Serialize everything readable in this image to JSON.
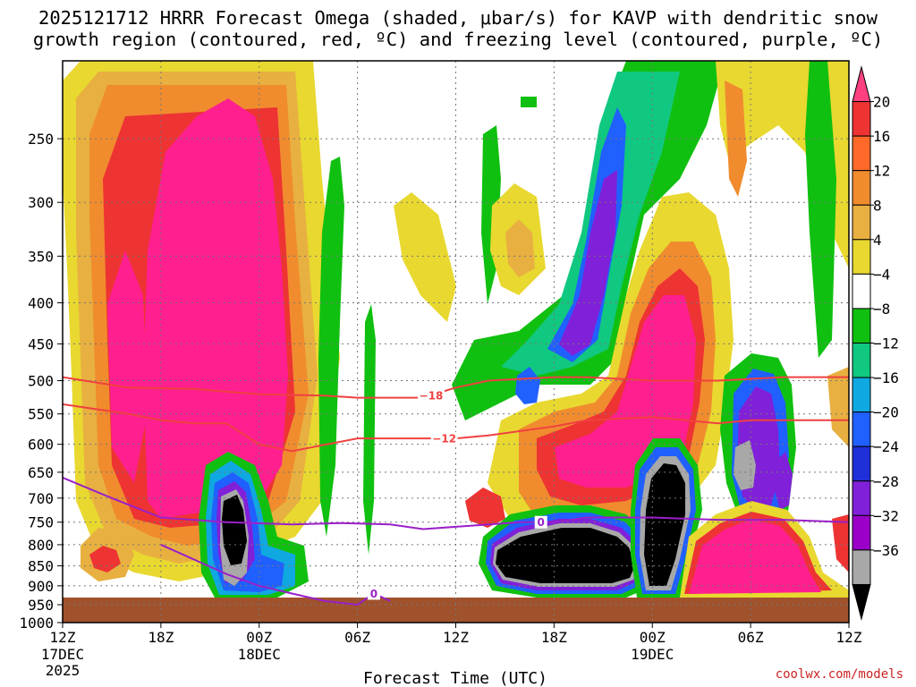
{
  "title_line1": "2025121712 HRRR Forecast Omega (shaded, μbar/s) for KAVP with dendritic snow",
  "title_line2": "growth region (contoured, red, ºC) and freezing level (contoured, purple, ºC)",
  "credit": "coolwx.com/models",
  "colorbar": {
    "labels": [
      "20",
      "16",
      "12",
      "8",
      "4",
      "−4",
      "−8",
      "−12",
      "−16",
      "−20",
      "−24",
      "−28",
      "−32",
      "−36"
    ],
    "colors": [
      "#ff4080",
      "#ee3333",
      "#ff6a2a",
      "#f08c2e",
      "#e8b040",
      "#e8d830",
      "#ffffff",
      "#10c010",
      "#10c880",
      "#10a8e0",
      "#2060ff",
      "#2030d8",
      "#8020d8",
      "#9a00c8",
      "#a8a8a8",
      "#000000"
    ]
  },
  "chart_data": {
    "type": "heatmap",
    "title": "2025121712 HRRR Forecast Omega (shaded, μbar/s) for KAVP with dendritic snow growth region (contoured, red, ºC) and freezing level (contoured, purple, ºC)",
    "xlabel": "Forecast Time (UTC)",
    "ylabel": "",
    "x_ticks": [
      "12Z",
      "18Z",
      "00Z",
      "06Z",
      "12Z",
      "18Z",
      "00Z",
      "06Z",
      "12Z"
    ],
    "x_tick_sub": [
      "17DEC",
      "",
      "18DEC",
      "",
      "",
      "",
      "19DEC",
      "",
      ""
    ],
    "x_tick_sub2": [
      "2025",
      "",
      "",
      "",
      "",
      "",
      "",
      "",
      ""
    ],
    "y_ticks": [
      250,
      300,
      350,
      400,
      450,
      500,
      550,
      600,
      650,
      700,
      750,
      800,
      850,
      900,
      950,
      1000
    ],
    "yscale": "log",
    "ylim": [
      1000,
      200
    ],
    "xlim_hours": [
      0,
      48
    ],
    "colorbar_levels": [
      20,
      16,
      12,
      8,
      4,
      -4,
      -8,
      -12,
      -16,
      -20,
      -24,
      -28,
      -32,
      -36
    ],
    "grid": true,
    "contours": [
      {
        "name": "-18",
        "color": "#f04040",
        "label_x_hours": 22.5,
        "x_hours": [
          0,
          4,
          8,
          12,
          16,
          18,
          22,
          24,
          26,
          30,
          32,
          36,
          40,
          44,
          48
        ],
        "pressure": [
          495,
          510,
          512,
          520,
          522,
          525,
          525,
          510,
          500,
          495,
          495,
          500,
          500,
          495,
          495
        ]
      },
      {
        "name": "-12",
        "color": "#f04040",
        "label_x_hours": 23.3,
        "x_hours": [
          0,
          4,
          6,
          8,
          10,
          12,
          14,
          18,
          22,
          24,
          26,
          30,
          32,
          36,
          38,
          40,
          42,
          44,
          48
        ],
        "pressure": [
          535,
          550,
          560,
          565,
          565,
          600,
          612,
          590,
          590,
          590,
          585,
          570,
          560,
          555,
          560,
          565,
          560,
          560,
          560
        ]
      },
      {
        "name": "0",
        "color": "#9a20c8",
        "label_x_hours": 29.2,
        "x_hours": [
          0,
          3,
          6,
          10,
          14,
          17,
          20,
          22,
          24,
          28,
          30,
          32,
          36,
          40,
          44,
          48
        ],
        "pressure": [
          660,
          700,
          740,
          750,
          755,
          752,
          755,
          765,
          760,
          750,
          750,
          740,
          740,
          745,
          745,
          750
        ]
      },
      {
        "name": "0",
        "color": "#9a20c8",
        "label_x_hours": 19.0,
        "x_hours": [
          6,
          10,
          12,
          14,
          16,
          18,
          19,
          20
        ],
        "pressure": [
          800,
          870,
          900,
          920,
          940,
          950,
          920,
          940
        ]
      }
    ]
  }
}
